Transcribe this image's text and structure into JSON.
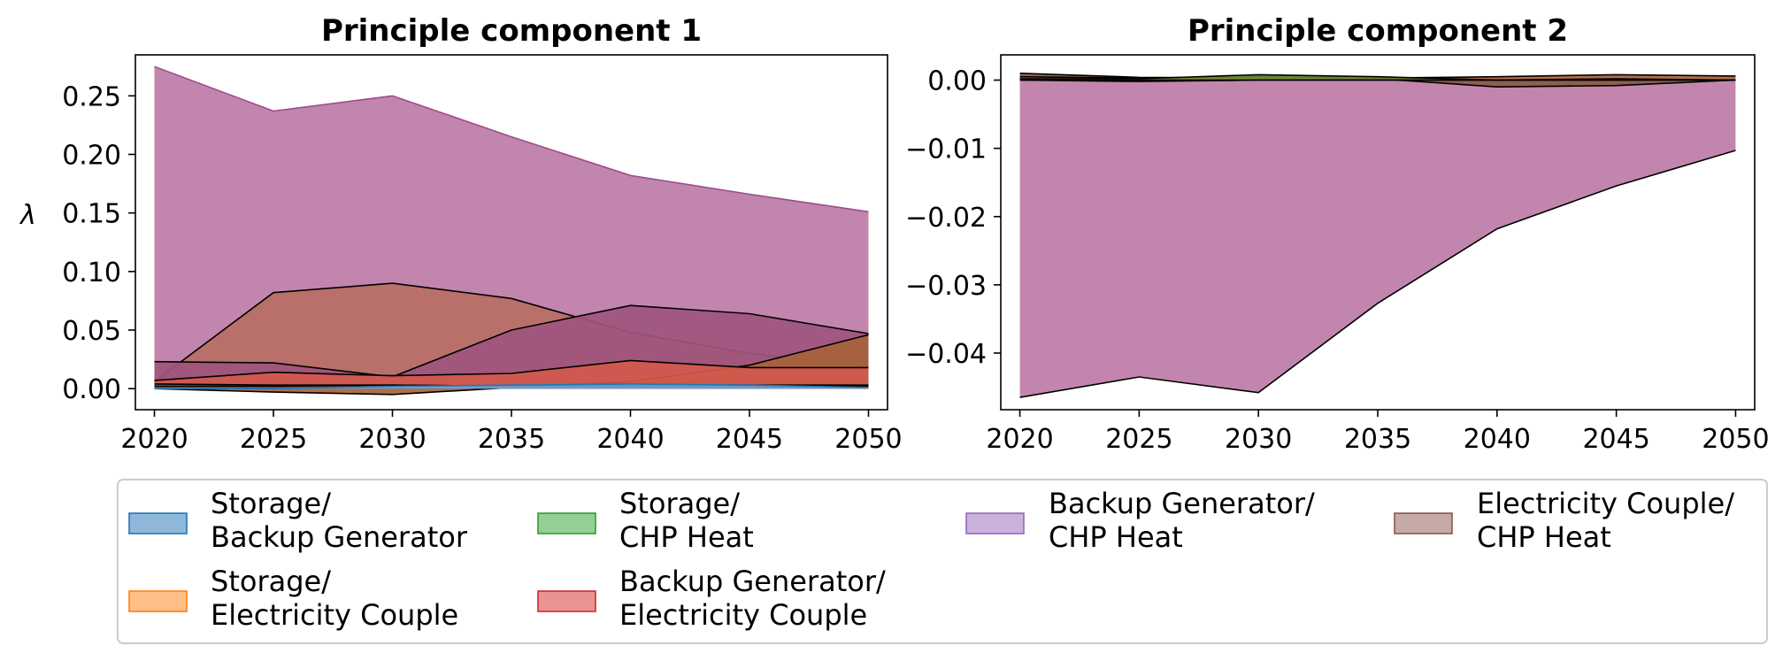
{
  "chart_data": [
    {
      "type": "area",
      "title": "Principle component 1",
      "ylabel": "λ",
      "xlabel": "",
      "x": [
        2020,
        2025,
        2030,
        2035,
        2040,
        2045,
        2050
      ],
      "x_ticks": [
        "2020",
        "2025",
        "2030",
        "2035",
        "2040",
        "2045",
        "2050"
      ],
      "y_ticks": [
        "0.00",
        "0.05",
        "0.10",
        "0.15",
        "0.20",
        "0.25"
      ],
      "y_tick_values": [
        0,
        0.05,
        0.1,
        0.15,
        0.2,
        0.25
      ],
      "xlim": [
        2019.2,
        2050.8
      ],
      "ylim": [
        -0.018,
        0.285
      ],
      "grid": false,
      "series": [
        {
          "name": "Storage/\nBackup Generator",
          "values": [
            0.0,
            0.0,
            0.002,
            0.003,
            0.004,
            0.003,
            0.001
          ]
        },
        {
          "name": "Storage/\nElectricity Couple",
          "values": [
            0.004,
            0.003,
            0.003,
            0.002,
            0.003,
            0.003,
            0.003
          ]
        },
        {
          "name": "Storage/\nCHP Heat",
          "values": [
            0.002,
            0.002,
            0.003,
            0.002,
            0.002,
            0.002,
            0.002
          ]
        },
        {
          "name": "Backup Generator/\nElectricity Couple",
          "values": [
            0.007,
            0.014,
            0.011,
            0.013,
            0.024,
            0.018,
            0.018
          ]
        },
        {
          "name": "Backup Generator/\nCHP Heat",
          "values": [
            0.275,
            0.237,
            0.25,
            0.215,
            0.182,
            0.166,
            0.151
          ]
        },
        {
          "name": "Electricity Couple/\nCHP Heat",
          "values": [
            0.006,
            0.082,
            0.09,
            0.077,
            0.048,
            0.03,
            0.019
          ]
        },
        {
          "name": "",
          "values": [
            0.023,
            0.022,
            0.01,
            0.05,
            0.071,
            0.064,
            0.047
          ]
        },
        {
          "name": "",
          "values": [
            0.0,
            -0.003,
            -0.005,
            0.001,
            0.006,
            0.02,
            0.046
          ]
        }
      ]
    },
    {
      "type": "area",
      "title": "Principle component 2",
      "ylabel": "",
      "xlabel": "",
      "x": [
        2020,
        2025,
        2030,
        2035,
        2040,
        2045,
        2050
      ],
      "x_ticks": [
        "2020",
        "2025",
        "2030",
        "2035",
        "2040",
        "2045",
        "2050"
      ],
      "y_ticks": [
        "0.00",
        "−0.01",
        "−0.02",
        "−0.03",
        "−0.04"
      ],
      "y_tick_values": [
        0,
        -0.01,
        -0.02,
        -0.03,
        -0.04
      ],
      "xlim": [
        2019.2,
        2050.8
      ],
      "ylim": [
        -0.0483,
        0.0037
      ],
      "grid": false,
      "series": [
        {
          "name": "Storage/\nBackup Generator",
          "values": [
            0.0,
            0.0,
            0.0,
            0.0,
            0.0,
            0.0,
            0.0
          ]
        },
        {
          "name": "Storage/\nElectricity Couple",
          "values": [
            0.0005,
            0.0003,
            0.0005,
            0.0003,
            0.0005,
            0.0008,
            0.0006
          ]
        },
        {
          "name": "Storage/\nCHP Heat",
          "values": [
            0.0002,
            0.0002,
            0.0008,
            0.0005,
            0.0,
            0.0002,
            0.0
          ]
        },
        {
          "name": "Backup Generator/\nElectricity Couple",
          "values": [
            0.0,
            -0.0002,
            0.0,
            0.0,
            0.0,
            0.0,
            0.0
          ]
        },
        {
          "name": "Backup Generator/\nCHP Heat",
          "values": [
            -0.0465,
            -0.0435,
            -0.0458,
            -0.0327,
            -0.0218,
            -0.0155,
            -0.0103
          ]
        },
        {
          "name": "Electricity Couple/\nCHP Heat",
          "values": [
            0.001,
            0.0004,
            0.0003,
            0.0002,
            -0.001,
            -0.0008,
            0.0
          ]
        }
      ]
    }
  ],
  "legend": {
    "placement": "bottom",
    "items": [
      {
        "line1": "Storage/",
        "line2": "Backup Generator",
        "color": "#8fb8db",
        "edge": "#1f77b4"
      },
      {
        "line1": "Storage/",
        "line2": "Electricity Couple",
        "color": "#ffbf87",
        "edge": "#ff7f0e"
      },
      {
        "line1": "Storage/",
        "line2": "CHP Heat",
        "color": "#95cf95",
        "edge": "#2ca02c"
      },
      {
        "line1": "Backup Generator/",
        "line2": "Electricity Couple",
        "color": "#ea9393",
        "edge": "#d62728"
      },
      {
        "line1": "Backup Generator/",
        "line2": "CHP Heat",
        "color": "#c9b3dd",
        "edge": "#9467bd"
      },
      {
        "line1": "Electricity Couple/",
        "line2": "CHP Heat",
        "color": "#c6aaa5",
        "edge": "#8c564b"
      }
    ]
  },
  "colors": {
    "purple_fill": "#bd7ca7",
    "purple_edge": "#9d4c8c",
    "brown_fill": "#b86e64",
    "dark_brown_fill": "#8e5a44",
    "red_fill": "#d2594c",
    "blue_fill": "#6ba3d6",
    "dark_fill": "#9e557d",
    "orange_fill": "#a8623b"
  }
}
